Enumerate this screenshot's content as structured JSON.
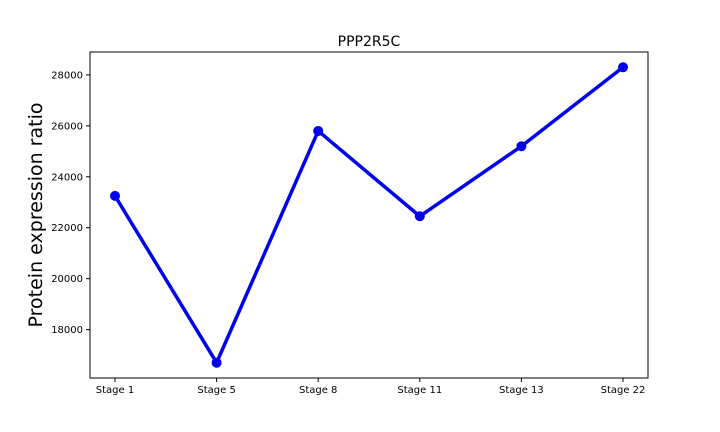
{
  "chart_data": {
    "type": "line",
    "title": "PPP2R5C",
    "xlabel": "",
    "ylabel": "Protein expression ratio",
    "categories": [
      "Stage 1",
      "Stage 5",
      "Stage 8",
      "Stage 11",
      "Stage 13",
      "Stage 22"
    ],
    "series": [
      {
        "values": [
          23250,
          16700,
          25800,
          22450,
          25200,
          28300
        ]
      }
    ],
    "ylim": [
      16100,
      28900
    ],
    "yticks": [
      18000,
      20000,
      22000,
      24000,
      26000,
      28000
    ],
    "ytick_labels": [
      "18000",
      "20000",
      "22000",
      "24000",
      "26000",
      "28000"
    ],
    "grid": false,
    "legend": "none",
    "colors": {
      "line": "#0000ee",
      "marker": "#0000ee",
      "axes": "#000000"
    }
  }
}
